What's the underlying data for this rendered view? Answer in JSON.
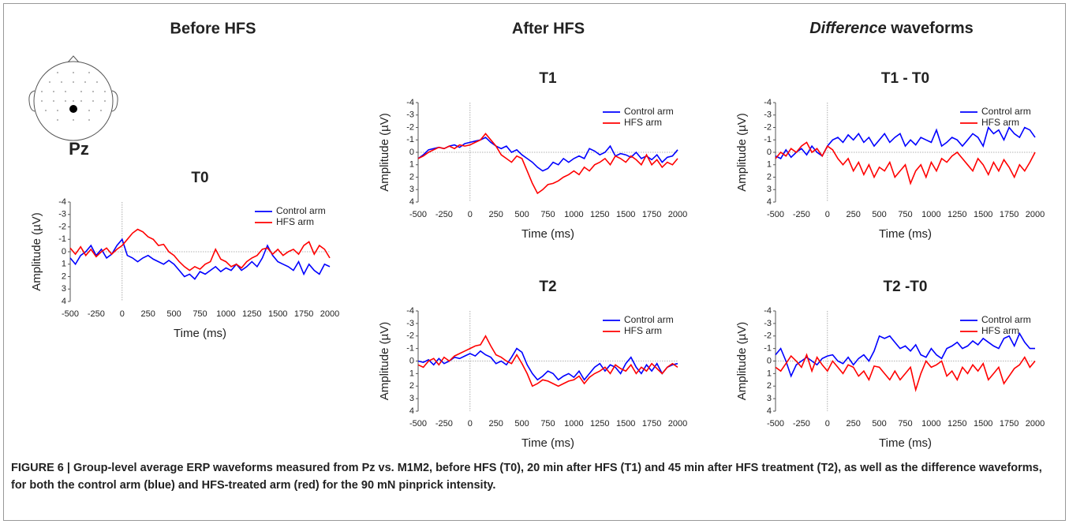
{
  "figure": {
    "header_before": "Before HFS",
    "header_after": "After HFS",
    "header_difference": {
      "italic": "Difference",
      "text": " waveforms"
    },
    "electrode": "Pz",
    "caption": "FIGURE 6 | Group-level average ERP waveforms measured from Pz vs. M1M2, before HFS (T0), 20 min after HFS (T1) and 45 min after HFS treatment (T2), as well as the difference waveforms, for both the control arm (blue) and HFS-treated arm (red) for the 90 mN pinprick intensity."
  },
  "chart_data": [
    {
      "type": "line",
      "title": "T0",
      "xlabel": "Time (ms)",
      "ylabel": "Amplitude (µV)",
      "legend": "upper right",
      "xlim": [
        -500,
        2000
      ],
      "xticks": [
        -500,
        -250,
        0,
        250,
        500,
        750,
        1000,
        1250,
        1500,
        1750,
        2000
      ],
      "ylim": [
        4,
        -4
      ],
      "yticks": [
        -4,
        -3,
        -2,
        -1,
        0,
        1,
        2,
        3,
        4
      ],
      "x": [
        -500,
        -450,
        -400,
        -350,
        -300,
        -250,
        -200,
        -150,
        -100,
        -50,
        0,
        50,
        100,
        150,
        200,
        250,
        300,
        350,
        400,
        450,
        500,
        550,
        600,
        650,
        700,
        750,
        800,
        850,
        900,
        950,
        1000,
        1050,
        1100,
        1150,
        1200,
        1250,
        1300,
        1350,
        1400,
        1450,
        1500,
        1550,
        1600,
        1650,
        1700,
        1750,
        1800,
        1850,
        1900,
        1950,
        2000
      ],
      "series": [
        {
          "name": "Control arm",
          "color": "#0000ff",
          "values": [
            0.5,
            1.0,
            0.3,
            0.0,
            -0.5,
            0.3,
            -0.2,
            0.5,
            0.2,
            -0.5,
            -1.0,
            0.3,
            0.5,
            0.8,
            0.5,
            0.3,
            0.6,
            0.8,
            1.0,
            0.7,
            1.0,
            1.5,
            2.0,
            1.8,
            2.2,
            1.6,
            1.8,
            1.5,
            1.2,
            1.6,
            1.3,
            1.5,
            1.0,
            1.5,
            1.2,
            0.8,
            1.2,
            0.5,
            -0.5,
            0.3,
            0.8,
            1.0,
            1.2,
            1.5,
            0.8,
            1.8,
            1.0,
            1.5,
            1.8,
            1.0,
            1.2
          ]
        },
        {
          "name": "HFS arm",
          "color": "#ff0000",
          "values": [
            -0.3,
            0.2,
            -0.4,
            0.3,
            -0.2,
            0.4,
            0.0,
            -0.3,
            0.2,
            -0.2,
            -0.5,
            -1.0,
            -1.5,
            -1.8,
            -1.6,
            -1.2,
            -1.0,
            -0.5,
            -0.6,
            0.0,
            0.3,
            0.8,
            1.2,
            1.5,
            1.2,
            1.4,
            1.0,
            0.8,
            -0.2,
            0.6,
            0.8,
            1.2,
            1.0,
            1.3,
            0.8,
            0.5,
            0.3,
            -0.2,
            -0.3,
            0.2,
            -0.2,
            0.3,
            0.0,
            -0.2,
            0.2,
            -0.5,
            -0.8,
            0.2,
            -0.5,
            -0.2,
            0.5
          ]
        }
      ]
    },
    {
      "type": "line",
      "title": "T1",
      "xlabel": "Time (ms)",
      "ylabel": "Amplitude (µV)",
      "legend": "upper right",
      "xlim": [
        -500,
        2000
      ],
      "xticks": [
        -500,
        -250,
        0,
        250,
        500,
        750,
        1000,
        1250,
        1500,
        1750,
        2000
      ],
      "ylim": [
        4,
        -4
      ],
      "yticks": [
        -4,
        -3,
        -2,
        -1,
        0,
        1,
        2,
        3,
        4
      ],
      "x": [
        -500,
        -450,
        -400,
        -350,
        -300,
        -250,
        -200,
        -150,
        -100,
        -50,
        0,
        50,
        100,
        150,
        200,
        250,
        300,
        350,
        400,
        450,
        500,
        550,
        600,
        650,
        700,
        750,
        800,
        850,
        900,
        950,
        1000,
        1050,
        1100,
        1150,
        1200,
        1250,
        1300,
        1350,
        1400,
        1450,
        1500,
        1550,
        1600,
        1650,
        1700,
        1750,
        1800,
        1850,
        1900,
        1950,
        2000
      ],
      "series": [
        {
          "name": "Control arm",
          "color": "#0000ff",
          "values": [
            0.5,
            0.2,
            -0.2,
            -0.3,
            -0.4,
            -0.3,
            -0.5,
            -0.6,
            -0.4,
            -0.7,
            -0.8,
            -0.9,
            -1.0,
            -1.2,
            -0.8,
            -0.5,
            -0.3,
            -0.5,
            0.0,
            -0.2,
            0.2,
            0.5,
            0.8,
            1.2,
            1.5,
            1.3,
            0.8,
            1.0,
            0.5,
            0.8,
            0.5,
            0.3,
            0.5,
            -0.3,
            -0.1,
            0.2,
            0.0,
            -0.5,
            0.3,
            0.1,
            0.2,
            0.4,
            0.0,
            0.5,
            0.3,
            0.6,
            0.2,
            0.8,
            0.4,
            0.3,
            -0.2
          ]
        },
        {
          "name": "HFS arm",
          "color": "#ff0000",
          "values": [
            0.5,
            0.3,
            0.0,
            -0.2,
            -0.4,
            -0.3,
            -0.5,
            -0.3,
            -0.6,
            -0.5,
            -0.6,
            -0.8,
            -1.0,
            -1.5,
            -1.0,
            -0.5,
            0.2,
            0.5,
            0.8,
            0.3,
            0.5,
            1.5,
            2.5,
            3.3,
            3.0,
            2.6,
            2.5,
            2.3,
            2.0,
            1.8,
            1.5,
            1.8,
            1.2,
            1.5,
            1.0,
            0.8,
            0.5,
            1.0,
            0.3,
            0.5,
            0.8,
            0.3,
            0.6,
            1.0,
            0.2,
            1.0,
            0.6,
            1.2,
            0.8,
            1.0,
            0.5
          ]
        }
      ]
    },
    {
      "type": "line",
      "title": "T2",
      "xlabel": "Time (ms)",
      "ylabel": "Amplitude (µV)",
      "legend": "upper right",
      "xlim": [
        -500,
        2000
      ],
      "xticks": [
        -500,
        -250,
        0,
        250,
        500,
        750,
        1000,
        1250,
        1500,
        1750,
        2000
      ],
      "ylim": [
        4,
        -4
      ],
      "yticks": [
        -4,
        -3,
        -2,
        -1,
        0,
        1,
        2,
        3,
        4
      ],
      "x": [
        -500,
        -450,
        -400,
        -350,
        -300,
        -250,
        -200,
        -150,
        -100,
        -50,
        0,
        50,
        100,
        150,
        200,
        250,
        300,
        350,
        400,
        450,
        500,
        550,
        600,
        650,
        700,
        750,
        800,
        850,
        900,
        950,
        1000,
        1050,
        1100,
        1150,
        1200,
        1250,
        1300,
        1350,
        1400,
        1450,
        1500,
        1550,
        1600,
        1650,
        1700,
        1750,
        1800,
        1850,
        1900,
        1950,
        2000
      ],
      "series": [
        {
          "name": "Control arm",
          "color": "#0000ff",
          "values": [
            0.0,
            0.1,
            -0.1,
            0.3,
            -0.2,
            0.2,
            0.0,
            -0.3,
            -0.2,
            -0.4,
            -0.6,
            -0.4,
            -0.8,
            -0.5,
            -0.3,
            0.2,
            0.0,
            0.3,
            -0.3,
            -1.0,
            -0.7,
            0.3,
            1.0,
            1.5,
            1.2,
            0.8,
            1.0,
            1.5,
            1.2,
            1.0,
            1.3,
            0.8,
            1.5,
            1.0,
            0.5,
            0.2,
            0.8,
            0.3,
            0.5,
            1.0,
            0.2,
            -0.3,
            0.5,
            1.0,
            0.3,
            0.8,
            0.2,
            1.0,
            0.5,
            0.3,
            0.2
          ]
        },
        {
          "name": "HFS arm",
          "color": "#ff0000",
          "values": [
            0.3,
            0.5,
            0.0,
            -0.2,
            0.3,
            -0.3,
            0.0,
            -0.4,
            -0.6,
            -0.8,
            -1.0,
            -1.2,
            -1.3,
            -2.0,
            -1.2,
            -0.5,
            -0.3,
            0.0,
            0.2,
            -0.5,
            0.2,
            1.0,
            2.0,
            1.8,
            1.5,
            1.6,
            1.8,
            2.0,
            1.8,
            1.6,
            1.5,
            1.2,
            1.8,
            1.3,
            1.0,
            0.8,
            0.5,
            1.0,
            0.3,
            0.6,
            0.8,
            0.3,
            1.0,
            0.5,
            0.8,
            0.2,
            0.6,
            1.0,
            0.5,
            0.2,
            0.5
          ]
        }
      ]
    },
    {
      "type": "line",
      "title": "T1 - T0",
      "xlabel": "Time (ms)",
      "ylabel": "Amplitude (µV)",
      "legend": "upper right",
      "xlim": [
        -500,
        2000
      ],
      "xticks": [
        -500,
        -250,
        0,
        250,
        500,
        750,
        1000,
        1250,
        1500,
        1750,
        2000
      ],
      "ylim": [
        4,
        -4
      ],
      "yticks": [
        -4,
        -3,
        -2,
        -1,
        0,
        1,
        2,
        3,
        4
      ],
      "x": [
        -500,
        -450,
        -400,
        -350,
        -300,
        -250,
        -200,
        -150,
        -100,
        -50,
        0,
        50,
        100,
        150,
        200,
        250,
        300,
        350,
        400,
        450,
        500,
        550,
        600,
        650,
        700,
        750,
        800,
        850,
        900,
        950,
        1000,
        1050,
        1100,
        1150,
        1200,
        1250,
        1300,
        1350,
        1400,
        1450,
        1500,
        1550,
        1600,
        1650,
        1700,
        1750,
        1800,
        1850,
        1900,
        1950,
        2000
      ],
      "series": [
        {
          "name": "Control arm",
          "color": "#0000ff",
          "values": [
            0.3,
            0.5,
            -0.2,
            0.4,
            0.0,
            -0.3,
            0.2,
            -0.5,
            0.0,
            0.3,
            -0.5,
            -1.0,
            -1.2,
            -0.8,
            -1.4,
            -1.0,
            -1.5,
            -0.8,
            -1.2,
            -0.5,
            -1.0,
            -1.5,
            -0.8,
            -1.2,
            -1.5,
            -0.5,
            -1.0,
            -0.6,
            -1.2,
            -1.0,
            -0.8,
            -1.8,
            -0.5,
            -0.8,
            -1.2,
            -1.0,
            -0.5,
            -1.0,
            -1.5,
            -1.2,
            -0.5,
            -2.0,
            -1.5,
            -1.8,
            -1.0,
            -2.0,
            -1.5,
            -1.2,
            -2.0,
            -1.8,
            -1.2
          ]
        },
        {
          "name": "HFS arm",
          "color": "#ff0000",
          "values": [
            0.5,
            0.0,
            0.3,
            -0.3,
            0.0,
            -0.5,
            -0.8,
            0.0,
            -0.3,
            0.3,
            -0.5,
            -0.2,
            0.5,
            1.0,
            0.5,
            1.5,
            0.8,
            1.8,
            1.0,
            2.0,
            1.2,
            1.5,
            0.8,
            2.0,
            1.5,
            1.0,
            2.5,
            1.5,
            1.0,
            2.0,
            0.8,
            1.5,
            0.5,
            0.8,
            0.3,
            0.0,
            0.5,
            1.0,
            1.5,
            0.5,
            1.0,
            1.8,
            0.8,
            1.5,
            0.6,
            1.2,
            2.0,
            1.0,
            1.5,
            0.8,
            0.0
          ]
        }
      ]
    },
    {
      "type": "line",
      "title": "T2 -T0",
      "xlabel": "Time (ms)",
      "ylabel": "Amplitude (µV)",
      "legend": "upper right",
      "xlim": [
        -500,
        2000
      ],
      "xticks": [
        -500,
        -250,
        0,
        250,
        500,
        750,
        1000,
        1250,
        1500,
        1750,
        2000
      ],
      "ylim": [
        4,
        -4
      ],
      "yticks": [
        -4,
        -3,
        -2,
        -1,
        0,
        1,
        2,
        3,
        4
      ],
      "x": [
        -500,
        -450,
        -400,
        -350,
        -300,
        -250,
        -200,
        -150,
        -100,
        -50,
        0,
        50,
        100,
        150,
        200,
        250,
        300,
        350,
        400,
        450,
        500,
        550,
        600,
        650,
        700,
        750,
        800,
        850,
        900,
        950,
        1000,
        1050,
        1100,
        1150,
        1200,
        1250,
        1300,
        1350,
        1400,
        1450,
        1500,
        1550,
        1600,
        1650,
        1700,
        1750,
        1800,
        1850,
        1900,
        1950,
        2000
      ],
      "series": [
        {
          "name": "Control arm",
          "color": "#0000ff",
          "values": [
            -0.5,
            -1.0,
            0.0,
            1.2,
            0.3,
            0.0,
            -0.3,
            0.0,
            0.3,
            -0.2,
            -0.4,
            -0.5,
            0.0,
            0.2,
            -0.3,
            0.3,
            -0.2,
            -0.5,
            0.0,
            -0.8,
            -2.0,
            -1.8,
            -2.0,
            -1.5,
            -1.0,
            -1.2,
            -0.8,
            -1.3,
            -0.5,
            -0.3,
            -1.0,
            -0.5,
            -0.2,
            -1.0,
            -1.2,
            -1.5,
            -1.0,
            -1.2,
            -1.6,
            -1.3,
            -1.8,
            -1.5,
            -1.2,
            -1.0,
            -1.8,
            -2.0,
            -1.2,
            -2.2,
            -1.5,
            -1.0,
            -1.0
          ]
        },
        {
          "name": "HFS arm",
          "color": "#ff0000",
          "values": [
            0.5,
            0.8,
            0.2,
            -0.4,
            0.0,
            0.5,
            -0.5,
            0.8,
            -0.3,
            0.3,
            0.8,
            0.0,
            0.5,
            1.0,
            0.3,
            0.5,
            1.2,
            0.8,
            1.5,
            0.4,
            0.5,
            1.0,
            1.5,
            0.8,
            1.5,
            1.0,
            0.5,
            2.3,
            1.0,
            0.0,
            0.5,
            0.3,
            0.0,
            1.2,
            0.8,
            1.5,
            0.5,
            1.0,
            0.3,
            0.8,
            0.2,
            1.5,
            1.0,
            0.5,
            1.8,
            1.2,
            0.6,
            0.3,
            -0.3,
            0.5,
            0.0
          ]
        }
      ]
    }
  ]
}
